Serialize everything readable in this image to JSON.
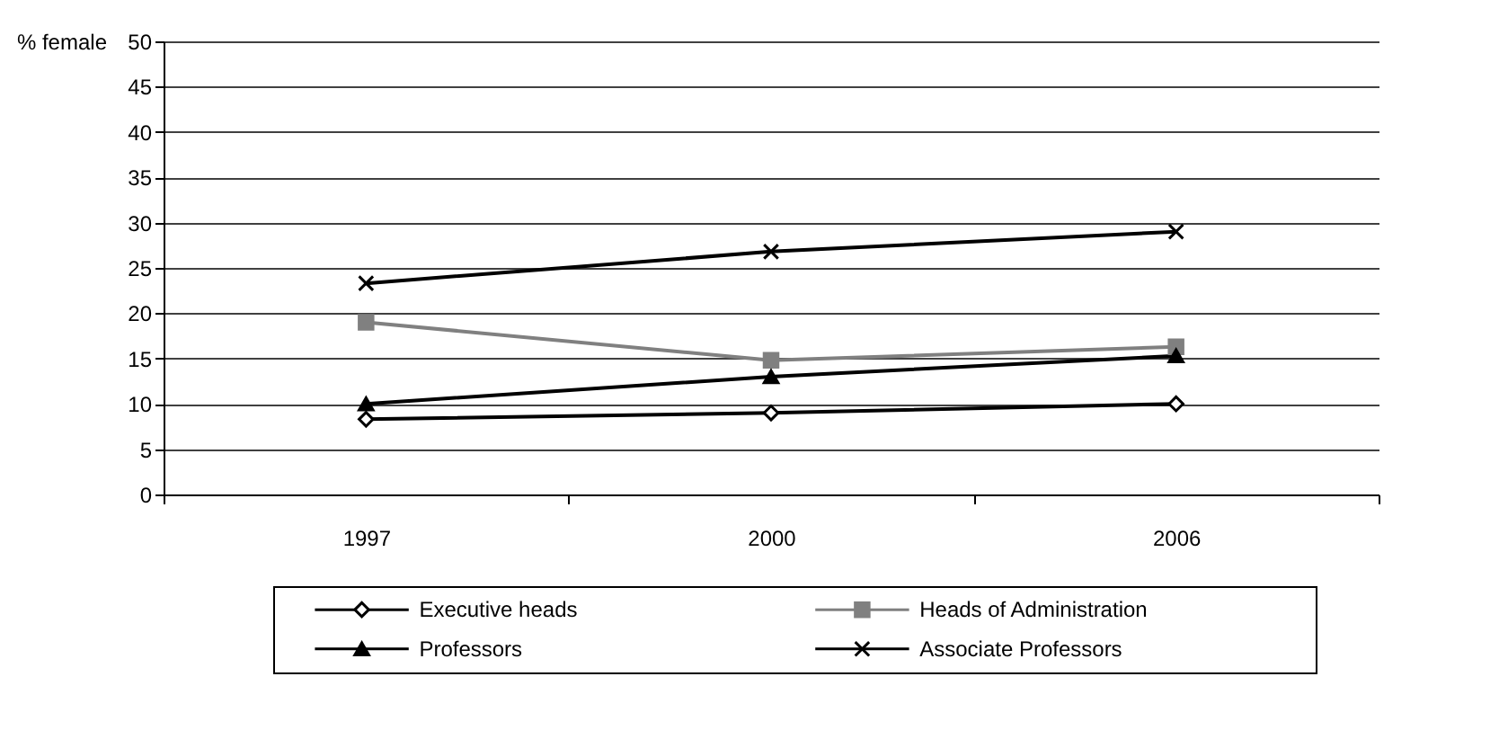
{
  "chart_data": {
    "type": "line",
    "ylabel": "% female",
    "categories": [
      "1997",
      "2000",
      "2006"
    ],
    "series": [
      {
        "name": "Executive heads",
        "color": "#000000",
        "marker": "diamond",
        "values": [
          8.3,
          9,
          10
        ]
      },
      {
        "name": "Heads of Administration",
        "color": "#808080",
        "marker": "square",
        "values": [
          19,
          14.8,
          16.3
        ]
      },
      {
        "name": "Professors",
        "color": "#000000",
        "marker": "triangle",
        "values": [
          10,
          13,
          15.3
        ]
      },
      {
        "name": "Associate Professors",
        "color": "#000000",
        "marker": "cross",
        "values": [
          23.3,
          26.8,
          29
        ]
      }
    ],
    "ylim": [
      0,
      50
    ],
    "yticks": [
      0,
      5,
      10,
      15,
      20,
      25,
      30,
      35,
      40,
      45,
      50
    ],
    "grid": "y",
    "legend": "bottom",
    "line_style": "solid"
  }
}
